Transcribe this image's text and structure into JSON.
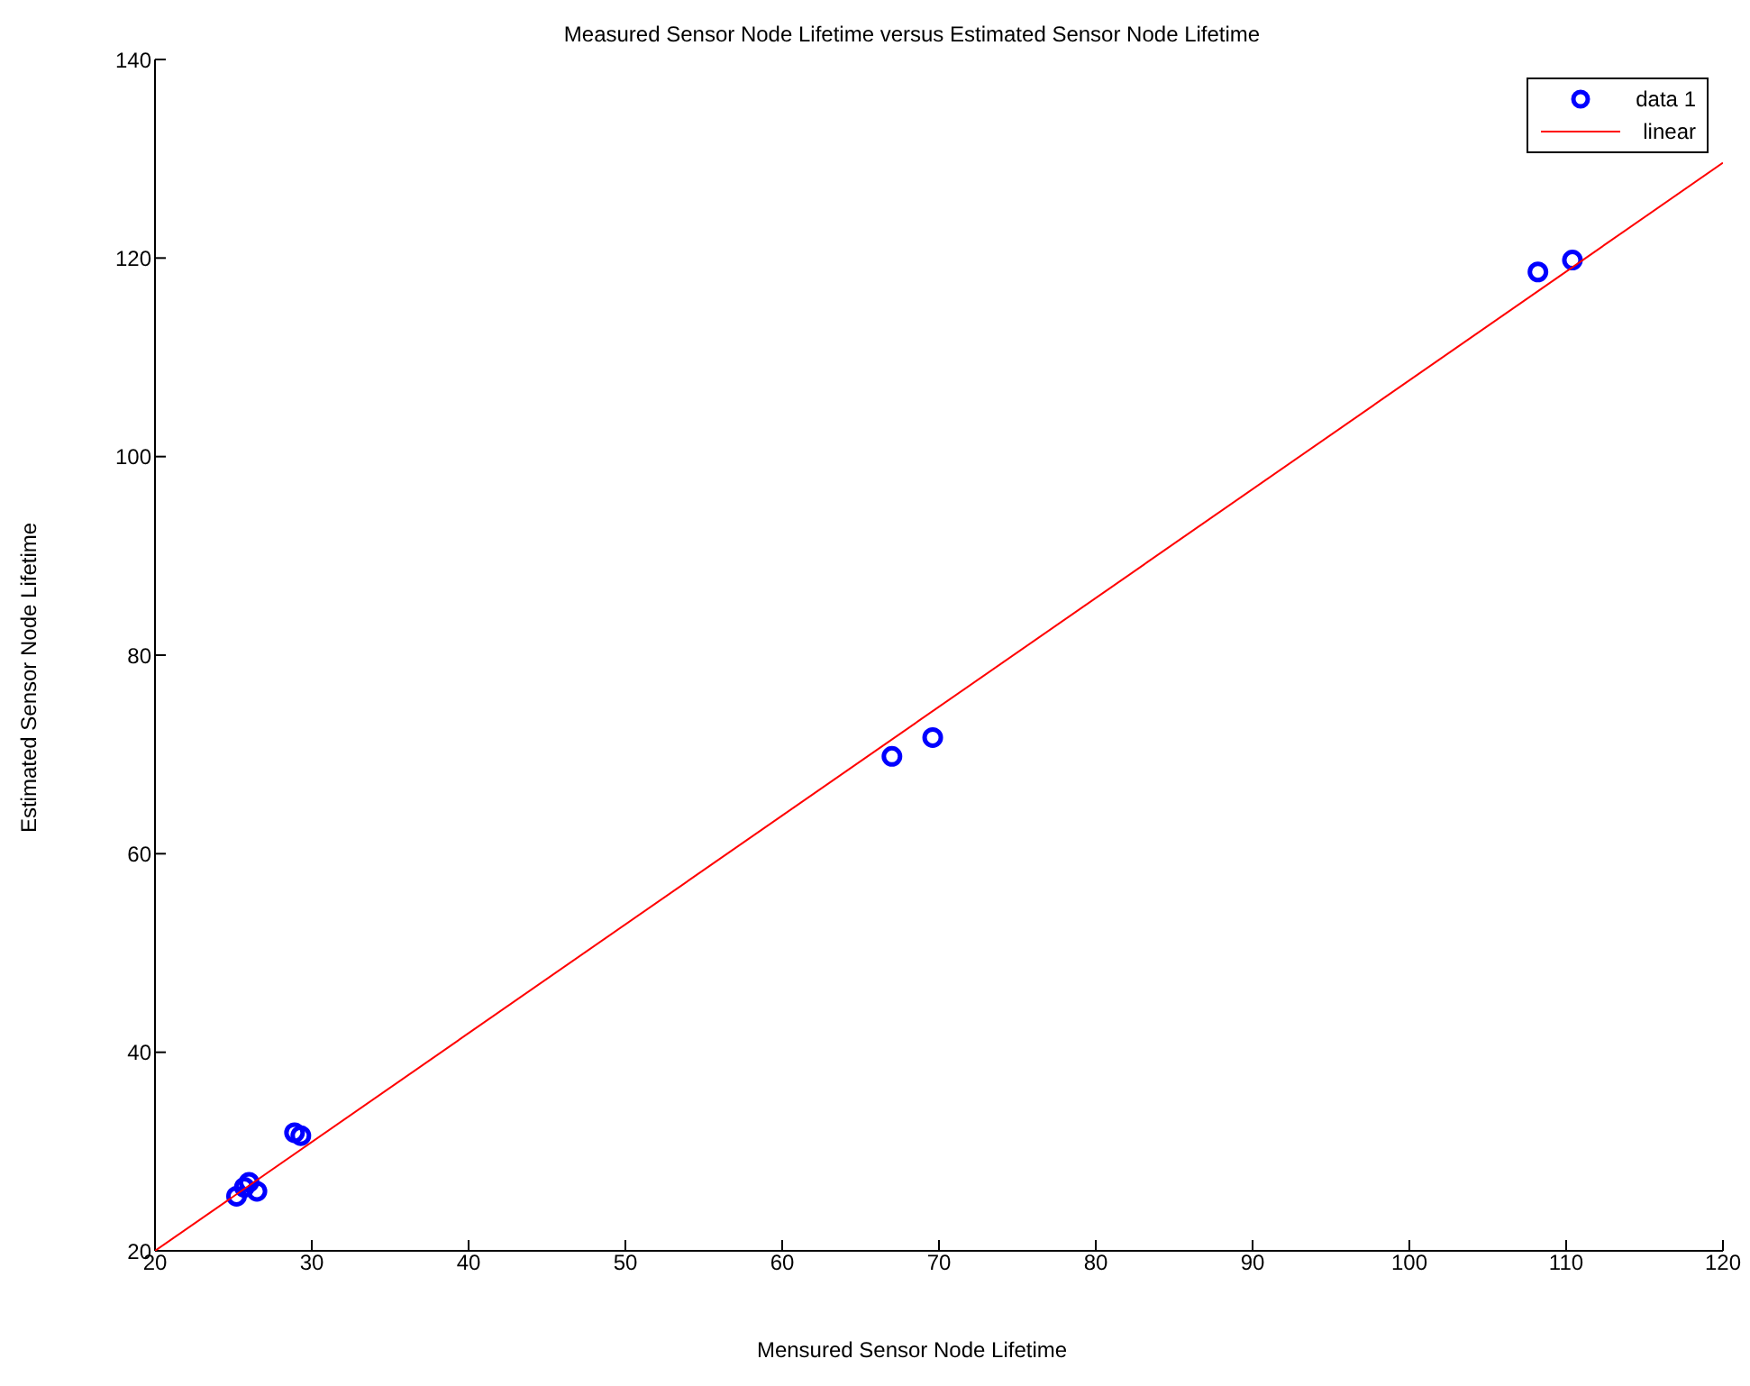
{
  "chart_data": {
    "type": "scatter",
    "title": "Measured Sensor Node Lifetime versus Estimated Sensor Node Lifetime",
    "xlabel": "Mensured Sensor Node Lifetime",
    "ylabel": "Estimated Sensor Node Lifetime",
    "xlim": [
      20,
      120
    ],
    "xticks": [
      20,
      30,
      40,
      50,
      60,
      70,
      80,
      90,
      100,
      110,
      120
    ],
    "ylim": [
      20,
      140
    ],
    "yticks": [
      20,
      40,
      60,
      80,
      100,
      120,
      140
    ],
    "grid": false,
    "legend": "top right",
    "series": [
      {
        "name": "data 1",
        "marker": "circle",
        "color": "#0000ff",
        "x": [
          25.2,
          25.7,
          26.0,
          26.5,
          28.9,
          29.3,
          67.0,
          69.6,
          108.2,
          110.4
        ],
        "values": [
          25.5,
          26.4,
          26.9,
          26.0,
          31.9,
          31.6,
          69.8,
          71.7,
          118.6,
          119.8
        ]
      },
      {
        "name": "linear",
        "type": "line",
        "marker": "none",
        "color": "#ff0000",
        "x": [
          20,
          120
        ],
        "values": [
          20,
          129.6
        ]
      }
    ]
  }
}
